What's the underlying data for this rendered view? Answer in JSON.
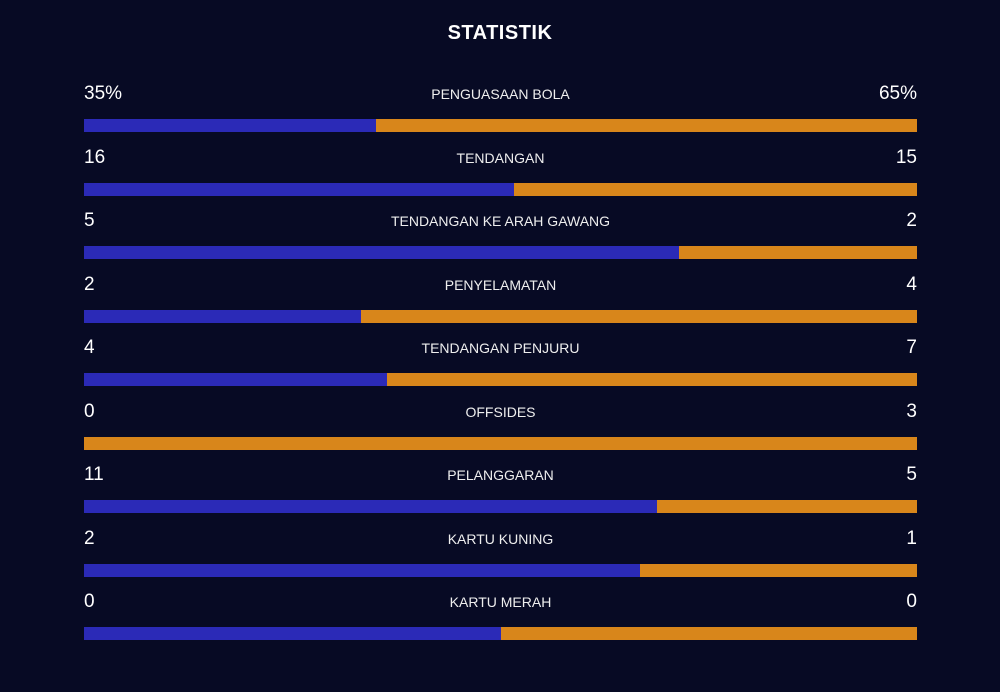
{
  "header": {
    "title": "STATISTIK"
  },
  "colors": {
    "background": "#070a24",
    "home": "#2b2ab7",
    "away": "#d8861b"
  },
  "stats": [
    {
      "label": "PENGUASAAN BOLA",
      "home": "35%",
      "away": "65%",
      "home_share": 0.35
    },
    {
      "label": "TENDANGAN",
      "home": "16",
      "away": "15",
      "home_share": 0.516
    },
    {
      "label": "TENDANGAN KE ARAH GAWANG",
      "home": "5",
      "away": "2",
      "home_share": 0.714
    },
    {
      "label": "PENYELAMATAN",
      "home": "2",
      "away": "4",
      "home_share": 0.333
    },
    {
      "label": "TENDANGAN PENJURU",
      "home": "4",
      "away": "7",
      "home_share": 0.364
    },
    {
      "label": "OFFSIDES",
      "home": "0",
      "away": "3",
      "home_share": 0.0
    },
    {
      "label": "PELANGGARAN",
      "home": "11",
      "away": "5",
      "home_share": 0.688
    },
    {
      "label": "KARTU KUNING",
      "home": "2",
      "away": "1",
      "home_share": 0.667
    },
    {
      "label": "KARTU MERAH",
      "home": "0",
      "away": "0",
      "home_share": 0.5
    }
  ]
}
